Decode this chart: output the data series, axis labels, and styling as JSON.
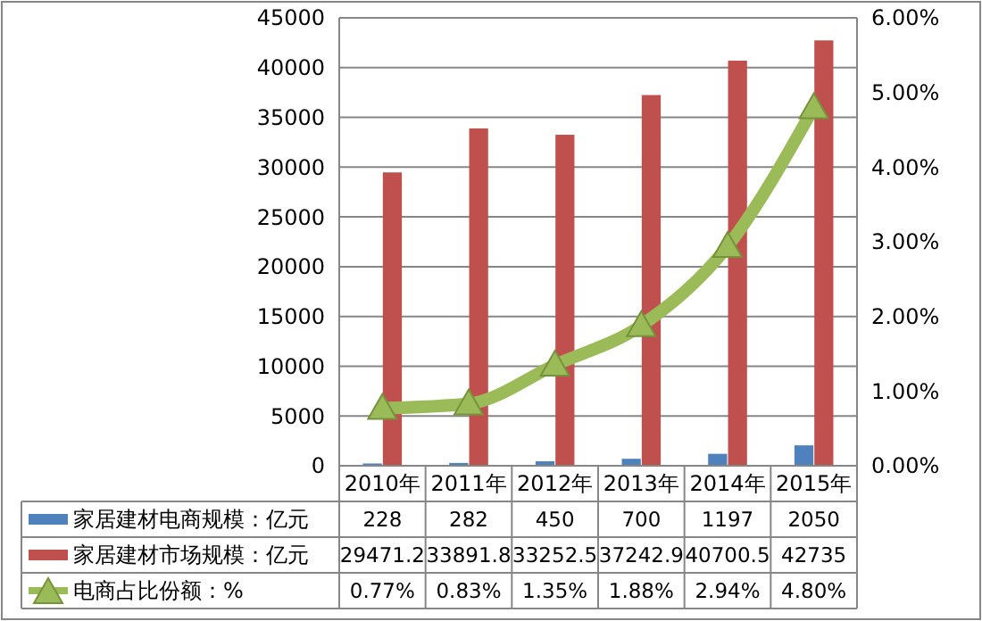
{
  "chart_data": {
    "type": "bar",
    "categories": [
      "2010年",
      "2011年",
      "2012年",
      "2013年",
      "2014年",
      "2015年"
    ],
    "series": [
      {
        "name": "家居建材电商规模：亿元",
        "color": "#4f81bd",
        "values": [
          228,
          282,
          450,
          700,
          1197,
          2050
        ],
        "value_labels": [
          "228",
          "282",
          "450",
          "700",
          "1197",
          "2050"
        ]
      },
      {
        "name": "家居建材市场规模：亿元",
        "color": "#c0504d",
        "values": [
          29471.2,
          33891.8,
          33252.5,
          37242.9,
          40700.5,
          42735
        ],
        "value_labels": [
          "29471.2",
          "33891.8",
          "33252.5",
          "37242.9",
          "40700.5",
          "42735"
        ]
      },
      {
        "name": "电商占比份额：%",
        "type": "line",
        "axis": "y2",
        "color": "#9bbb59",
        "marker": "triangle",
        "values": [
          0.77,
          0.83,
          1.35,
          1.88,
          2.94,
          4.8
        ],
        "value_labels": [
          "0.77%",
          "0.83%",
          "1.35%",
          "1.88%",
          "2.94%",
          "4.80%"
        ]
      }
    ],
    "ylim": [
      0,
      45000
    ],
    "yticks": [
      0,
      5000,
      10000,
      15000,
      20000,
      25000,
      30000,
      35000,
      40000,
      45000
    ],
    "y2lim": [
      0,
      6
    ],
    "y2ticks": [
      {
        "value": 0,
        "label": "0.00%"
      },
      {
        "value": 1,
        "label": "1.00%"
      },
      {
        "value": 2,
        "label": "2.00%"
      },
      {
        "value": 3,
        "label": "3.00%"
      },
      {
        "value": 4,
        "label": "4.00%"
      },
      {
        "value": 5,
        "label": "5.00%"
      },
      {
        "value": 6,
        "label": "6.00%"
      }
    ],
    "grid": "y",
    "legend": "bottom"
  }
}
